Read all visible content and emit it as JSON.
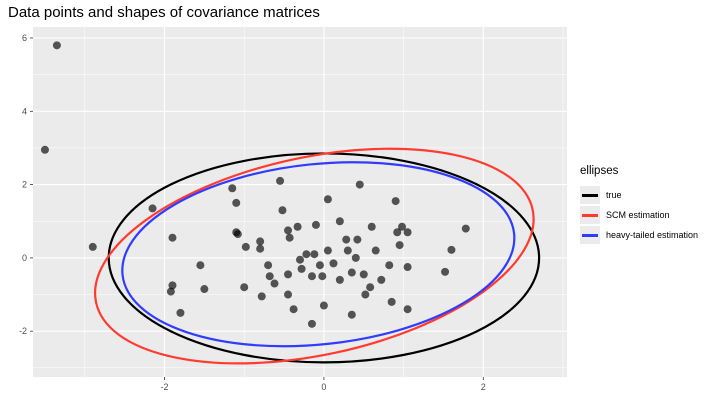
{
  "chart_data": {
    "type": "scatter",
    "title": "Data points and shapes of covariance matrices",
    "xlabel": "",
    "ylabel": "",
    "xlim": [
      -3.65,
      3.05
    ],
    "ylim": [
      -3.25,
      6.3
    ],
    "x_ticks": [
      -2,
      0,
      2
    ],
    "y_ticks": [
      -2,
      0,
      2,
      4,
      6
    ],
    "x_tick_labels": [
      "-2",
      "0",
      "2"
    ],
    "y_tick_labels": [
      "-2",
      "0",
      "2",
      "4",
      "6"
    ],
    "grid": true,
    "legend_position": "right",
    "legend_title": "ellipses",
    "points": [
      {
        "x": -3.35,
        "y": 5.8
      },
      {
        "x": -3.5,
        "y": 2.95
      },
      {
        "x": -2.9,
        "y": 0.3
      },
      {
        "x": -2.15,
        "y": 1.35
      },
      {
        "x": -1.9,
        "y": 0.55
      },
      {
        "x": -1.9,
        "y": -0.75
      },
      {
        "x": -1.92,
        "y": -0.92
      },
      {
        "x": -1.8,
        "y": -1.5
      },
      {
        "x": -1.55,
        "y": -0.2
      },
      {
        "x": -1.5,
        "y": -0.85
      },
      {
        "x": -1.15,
        "y": 1.9
      },
      {
        "x": -1.1,
        "y": 1.5
      },
      {
        "x": -1.08,
        "y": 0.65
      },
      {
        "x": -1.1,
        "y": 0.7
      },
      {
        "x": -0.98,
        "y": 0.3
      },
      {
        "x": -1.0,
        "y": -0.8
      },
      {
        "x": -0.8,
        "y": 0.45
      },
      {
        "x": -0.8,
        "y": 0.25
      },
      {
        "x": -0.78,
        "y": -1.05
      },
      {
        "x": -0.7,
        "y": -0.2
      },
      {
        "x": -0.68,
        "y": -0.5
      },
      {
        "x": -0.62,
        "y": -0.7
      },
      {
        "x": -0.55,
        "y": 2.1
      },
      {
        "x": -0.52,
        "y": 1.3
      },
      {
        "x": -0.45,
        "y": 0.75
      },
      {
        "x": -0.43,
        "y": 0.55
      },
      {
        "x": -0.45,
        "y": -0.45
      },
      {
        "x": -0.45,
        "y": -1.0
      },
      {
        "x": -0.38,
        "y": -1.4
      },
      {
        "x": -0.33,
        "y": 0.85
      },
      {
        "x": -0.3,
        "y": -0.05
      },
      {
        "x": -0.28,
        "y": -0.3
      },
      {
        "x": -0.22,
        "y": 0.1
      },
      {
        "x": -0.15,
        "y": -0.5
      },
      {
        "x": -0.15,
        "y": -1.8
      },
      {
        "x": -0.1,
        "y": 0.9
      },
      {
        "x": -0.12,
        "y": 0.1
      },
      {
        "x": -0.05,
        "y": -0.2
      },
      {
        "x": -0.02,
        "y": -0.5
      },
      {
        "x": 0.0,
        "y": -1.3
      },
      {
        "x": 0.05,
        "y": 1.6
      },
      {
        "x": 0.05,
        "y": 0.2
      },
      {
        "x": 0.12,
        "y": -0.15
      },
      {
        "x": 0.2,
        "y": 1.0
      },
      {
        "x": 0.2,
        "y": -0.6
      },
      {
        "x": 0.28,
        "y": 0.5
      },
      {
        "x": 0.3,
        "y": 0.2
      },
      {
        "x": 0.35,
        "y": -0.4
      },
      {
        "x": 0.35,
        "y": -1.55
      },
      {
        "x": 0.4,
        "y": 0.0
      },
      {
        "x": 0.42,
        "y": 0.5
      },
      {
        "x": 0.45,
        "y": 2.0
      },
      {
        "x": 0.5,
        "y": -0.45
      },
      {
        "x": 0.52,
        "y": -1.0
      },
      {
        "x": 0.58,
        "y": -0.8
      },
      {
        "x": 0.6,
        "y": 0.85
      },
      {
        "x": 0.65,
        "y": 0.2
      },
      {
        "x": 0.72,
        "y": -0.6
      },
      {
        "x": 0.82,
        "y": -0.2
      },
      {
        "x": 0.85,
        "y": -1.2
      },
      {
        "x": 0.9,
        "y": 1.55
      },
      {
        "x": 0.92,
        "y": 0.7
      },
      {
        "x": 0.95,
        "y": 0.35
      },
      {
        "x": 0.98,
        "y": 0.85
      },
      {
        "x": 1.05,
        "y": -0.25
      },
      {
        "x": 1.05,
        "y": 0.7
      },
      {
        "x": 1.05,
        "y": -1.4
      },
      {
        "x": 1.52,
        "y": -0.38
      },
      {
        "x": 1.6,
        "y": 0.22
      },
      {
        "x": 1.78,
        "y": 0.8
      }
    ],
    "ellipses": [
      {
        "name": "true",
        "color": "#000000",
        "center": [
          0.0,
          0.0
        ],
        "semi_axis_x": 2.7,
        "semi_axis_y": 2.85,
        "rotation_deg": 0
      },
      {
        "name": "SCM estimation",
        "color": "#ff3b30",
        "center": [
          -0.12,
          0.05
        ],
        "semi_axis_x": 2.8,
        "semi_axis_y": 2.7,
        "rotation_deg": -12
      },
      {
        "name": "heavy-tailed estimation",
        "color": "#2f3cff",
        "center": [
          -0.07,
          0.1
        ],
        "semi_axis_x": 2.47,
        "semi_axis_y": 2.46,
        "rotation_deg": -6
      }
    ],
    "colors": {
      "point": "#000000",
      "panel_bg": "#ebebeb",
      "grid": "#ffffff"
    }
  },
  "legend": {
    "title": "ellipses",
    "items": [
      {
        "label": "true",
        "color": "#000000"
      },
      {
        "label": "SCM estimation",
        "color": "#ff3b30"
      },
      {
        "label": "heavy-tailed estimation",
        "color": "#2f3cff"
      }
    ]
  }
}
